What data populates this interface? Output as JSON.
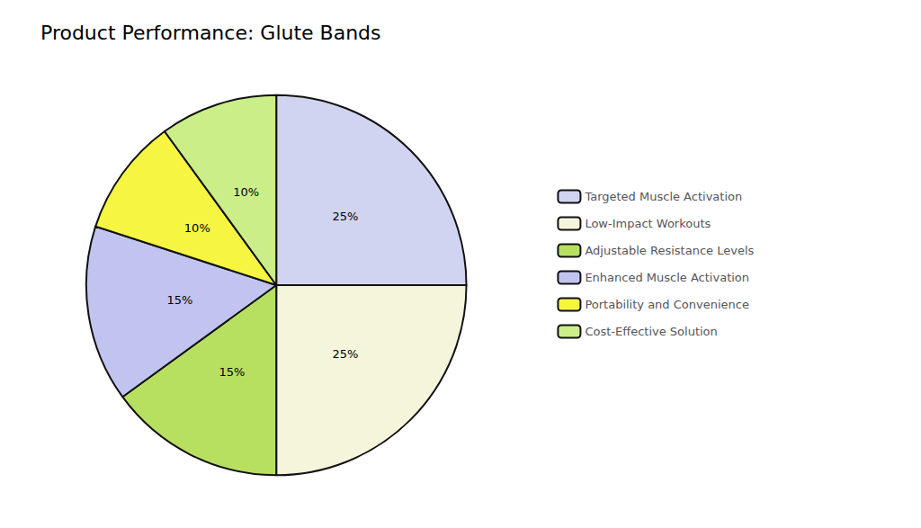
{
  "chart_data": {
    "type": "pie",
    "title": "Product Performance: Glute Bands",
    "categories": [
      "Targeted Muscle Activation",
      "Low-Impact Workouts",
      "Adjustable Resistance Levels",
      "Enhanced Muscle Activation",
      "Portability and Convenience",
      "Cost-Effective Solution"
    ],
    "values": [
      25,
      25,
      15,
      15,
      10,
      10
    ],
    "value_labels": [
      "25%",
      "25%",
      "15%",
      "15%",
      "10%",
      "10%"
    ],
    "colors": [
      "#d0d4f0",
      "#f5f5dc",
      "#b8e060",
      "#c0c4ee",
      "#f5f542",
      "#ccee88"
    ],
    "data_labels": true,
    "legend": "right"
  }
}
